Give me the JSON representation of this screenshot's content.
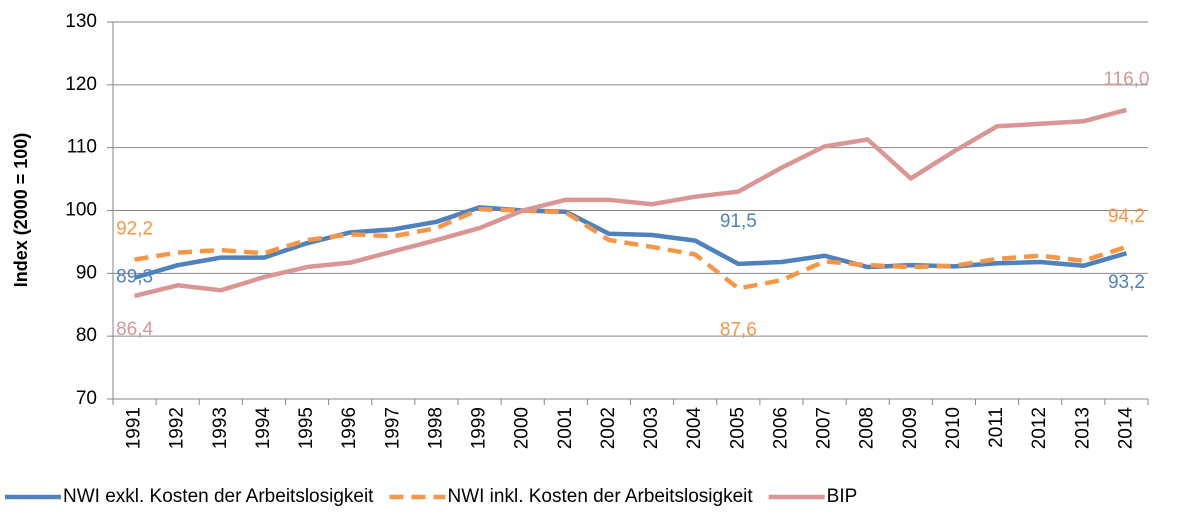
{
  "chart_data": {
    "type": "line",
    "y_label": "Index (2000 = 100)",
    "categories": [
      "1991",
      "1992",
      "1993",
      "1994",
      "1995",
      "1996",
      "1997",
      "1998",
      "1999",
      "2000",
      "2001",
      "2002",
      "2003",
      "2004",
      "2005",
      "2006",
      "2007",
      "2008",
      "2009",
      "2010",
      "2011",
      "2012",
      "2013",
      "2014"
    ],
    "ylim": [
      70,
      130
    ],
    "yticks": [
      70,
      80,
      90,
      100,
      110,
      120,
      130
    ],
    "grid": true,
    "legend": "bottom",
    "series": [
      {
        "name": "NWI exkl. Kosten der Arbeitslosigkeit",
        "color": "#4f81bd",
        "line_style": "solid",
        "values": [
          89.3,
          91.3,
          92.5,
          92.5,
          94.8,
          96.5,
          97.0,
          98.2,
          100.5,
          100,
          99.8,
          96.3,
          96.1,
          95.2,
          91.5,
          91.8,
          92.8,
          91.0,
          91.3,
          91.1,
          91.6,
          91.8,
          91.2,
          93.2
        ],
        "value_labels": [
          "89,3",
          null,
          null,
          null,
          null,
          null,
          null,
          null,
          null,
          null,
          null,
          null,
          null,
          null,
          "91,5",
          null,
          null,
          null,
          null,
          null,
          null,
          null,
          null,
          "93,2"
        ]
      },
      {
        "name": "NWI inkl. Kosten der Arbeitslosigkeit",
        "color": "#f79646",
        "line_style": "dashed",
        "values": [
          92.2,
          93.3,
          93.7,
          93.2,
          95.3,
          96.2,
          95.9,
          97.2,
          100.2,
          100,
          99.7,
          95.3,
          94.2,
          93.0,
          87.6,
          88.9,
          91.9,
          91.3,
          91.0,
          91.2,
          92.3,
          92.8,
          92.0,
          94.2
        ],
        "value_labels": [
          "92,2",
          null,
          null,
          null,
          null,
          null,
          null,
          null,
          null,
          null,
          null,
          null,
          null,
          null,
          "87,6",
          null,
          null,
          null,
          null,
          null,
          null,
          null,
          null,
          "94,2"
        ]
      },
      {
        "name": "BIP",
        "color": "#d99694",
        "line_style": "solid",
        "values": [
          86.4,
          88.1,
          87.3,
          89.4,
          91.0,
          91.7,
          93.5,
          95.3,
          97.2,
          100,
          101.7,
          101.7,
          101.0,
          102.2,
          103.0,
          106.8,
          110.2,
          111.3,
          105.1,
          109.4,
          113.4,
          113.8,
          114.2,
          116.0
        ],
        "value_labels": [
          "86,4",
          null,
          null,
          null,
          null,
          null,
          null,
          null,
          null,
          null,
          null,
          null,
          null,
          null,
          null,
          null,
          null,
          null,
          null,
          null,
          null,
          null,
          null,
          "116,0"
        ]
      }
    ]
  }
}
